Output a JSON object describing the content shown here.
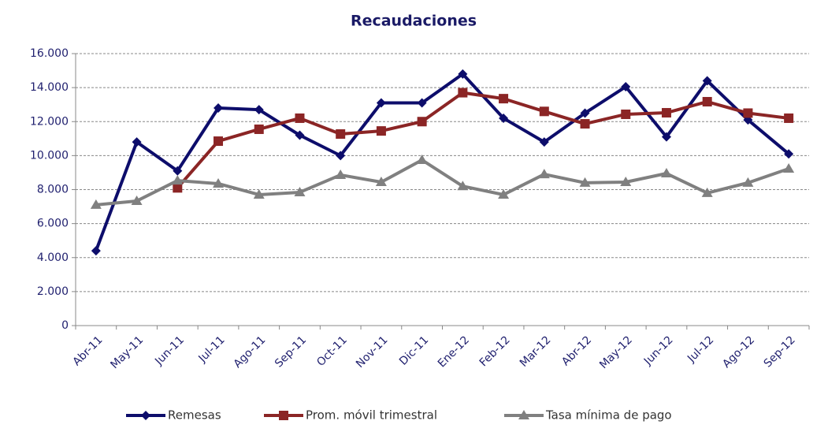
{
  "chart_data": {
    "type": "line",
    "title": "Recaudaciones",
    "categories": [
      "Abr-11",
      "May-11",
      "Jun-11",
      "Jul-11",
      "Ago-11",
      "Sep-11",
      "Oct-11",
      "Nov-11",
      "Dic-11",
      "Ene-12",
      "Feb-12",
      "Mar-12",
      "Abr-12",
      "May-12",
      "Jun-12",
      "Jul-12",
      "Ago-12",
      "Sep-12"
    ],
    "series": [
      {
        "name": "Remesas",
        "color": "#0d0d6b",
        "marker": "diamond",
        "values": [
          4400,
          10800,
          9100,
          12800,
          12700,
          11200,
          10000,
          13100,
          13100,
          14800,
          12200,
          10800,
          12500,
          14050,
          11100,
          14400,
          12100,
          10100
        ]
      },
      {
        "name": "Prom. móvil trimestral",
        "color": "#8b2525",
        "marker": "square",
        "values": [
          null,
          null,
          8100,
          10850,
          11550,
          12200,
          11270,
          11450,
          12000,
          13700,
          13350,
          12600,
          11870,
          12430,
          12520,
          13170,
          12500,
          12200
        ]
      },
      {
        "name": "Tasa mínima de pago",
        "color": "#808080",
        "marker": "triangle",
        "values": [
          7100,
          7330,
          8530,
          8350,
          7700,
          7840,
          8860,
          8440,
          9740,
          8200,
          7700,
          8900,
          8400,
          8440,
          8950,
          7800,
          8400,
          9230
        ]
      }
    ],
    "ylim": [
      0,
      16000
    ],
    "yticks": [
      0,
      {
        "value": 2000,
        "label": "2.000"
      },
      {
        "value": 4000,
        "label": "4.000"
      },
      {
        "value": 6000,
        "label": "6.000"
      },
      {
        "value": 8000,
        "label": "8.000"
      },
      {
        "value": 10000,
        "label": "10.000"
      },
      {
        "value": 12000,
        "label": "12.000"
      },
      {
        "value": 14000,
        "label": "14.000"
      },
      {
        "value": 16000,
        "label": "16.000"
      }
    ],
    "grid": true,
    "legend": "bottom"
  }
}
